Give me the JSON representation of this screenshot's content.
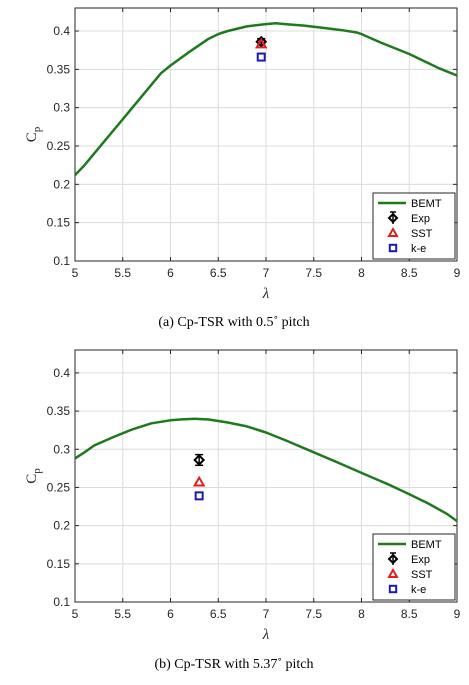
{
  "colors": {
    "bemt": "#1e7a1e",
    "exp": "#000000",
    "sst": "#e02020",
    "ke": "#1a1ab0",
    "grid": "#dcdcdc",
    "axis": "#262626"
  },
  "chart_data": [
    {
      "type": "line",
      "caption": "(a) Cp-TSR with 0.5˚ pitch",
      "xlabel": "λ",
      "ylabel": "C",
      "ylabel_sub": "p",
      "xlim": [
        5,
        9
      ],
      "ylim": [
        0.1,
        0.43
      ],
      "xticks": [
        5,
        5.5,
        6,
        6.5,
        7,
        7.5,
        8,
        8.5,
        9
      ],
      "xtick_labels": [
        "5",
        "5.5",
        "6",
        "6.5",
        "7",
        "7.5",
        "8",
        "8.5",
        "9"
      ],
      "yticks": [
        0.1,
        0.15,
        0.2,
        0.25,
        0.3,
        0.35,
        0.4
      ],
      "ytick_labels": [
        "0.1",
        "0.15",
        "0.2",
        "0.25",
        "0.3",
        "0.35",
        "0.4"
      ],
      "grid": true,
      "legend_position": "bottom-right",
      "legend": [
        "BEMT",
        "Exp",
        "SST",
        "k-e"
      ],
      "series": [
        {
          "name": "BEMT",
          "kind": "line",
          "x": [
            5.0,
            5.1,
            5.3,
            5.5,
            5.7,
            5.9,
            6.0,
            6.2,
            6.4,
            6.5,
            6.6,
            6.8,
            7.0,
            7.1,
            7.2,
            7.4,
            7.6,
            7.8,
            7.95,
            8.0,
            8.2,
            8.5,
            8.8,
            9.0
          ],
          "y": [
            0.212,
            0.225,
            0.255,
            0.285,
            0.315,
            0.345,
            0.355,
            0.373,
            0.39,
            0.396,
            0.4,
            0.406,
            0.409,
            0.41,
            0.409,
            0.407,
            0.404,
            0.401,
            0.398,
            0.396,
            0.385,
            0.37,
            0.352,
            0.342
          ]
        },
        {
          "name": "Exp",
          "kind": "marker-errorbar",
          "x": [
            6.95
          ],
          "y": [
            0.386
          ],
          "err": [
            0.004
          ]
        },
        {
          "name": "SST",
          "kind": "marker",
          "x": [
            6.95
          ],
          "y": [
            0.383
          ]
        },
        {
          "name": "k-e",
          "kind": "marker",
          "x": [
            6.95
          ],
          "y": [
            0.366
          ]
        }
      ]
    },
    {
      "type": "line",
      "caption": "(b) Cp-TSR with 5.37˚ pitch",
      "xlabel": "λ",
      "ylabel": "C",
      "ylabel_sub": "p",
      "xlim": [
        5,
        9
      ],
      "ylim": [
        0.1,
        0.43
      ],
      "xticks": [
        5,
        5.5,
        6,
        6.5,
        7,
        7.5,
        8,
        8.5,
        9
      ],
      "xtick_labels": [
        "5",
        "5.5",
        "6",
        "6.5",
        "7",
        "7.5",
        "8",
        "8.5",
        "9"
      ],
      "yticks": [
        0.1,
        0.15,
        0.2,
        0.25,
        0.3,
        0.35,
        0.4
      ],
      "ytick_labels": [
        "0.1",
        "0.15",
        "0.2",
        "0.25",
        "0.3",
        "0.35",
        "0.4"
      ],
      "grid": true,
      "legend_position": "bottom-right",
      "legend": [
        "BEMT",
        "Exp",
        "SST",
        "k-e"
      ],
      "series": [
        {
          "name": "BEMT",
          "kind": "line",
          "x": [
            5.0,
            5.1,
            5.2,
            5.4,
            5.6,
            5.8,
            6.0,
            6.1,
            6.25,
            6.4,
            6.6,
            6.8,
            7.0,
            7.2,
            7.5,
            7.8,
            8.0,
            8.3,
            8.5,
            8.7,
            8.9,
            9.0
          ],
          "y": [
            0.288,
            0.296,
            0.305,
            0.316,
            0.326,
            0.334,
            0.338,
            0.339,
            0.34,
            0.339,
            0.335,
            0.33,
            0.322,
            0.312,
            0.296,
            0.28,
            0.269,
            0.253,
            0.241,
            0.229,
            0.215,
            0.206
          ]
        },
        {
          "name": "Exp",
          "kind": "marker-errorbar",
          "x": [
            6.3
          ],
          "y": [
            0.286
          ],
          "err": [
            0.007
          ]
        },
        {
          "name": "SST",
          "kind": "marker",
          "x": [
            6.3
          ],
          "y": [
            0.257
          ]
        },
        {
          "name": "k-e",
          "kind": "marker",
          "x": [
            6.3
          ],
          "y": [
            0.239
          ]
        }
      ]
    }
  ]
}
